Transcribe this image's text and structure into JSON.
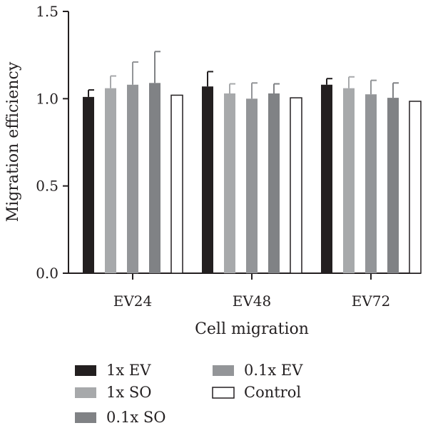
{
  "chart_data": {
    "type": "bar",
    "title": "",
    "xlabel": "Cell migration",
    "ylabel": "Migration efficiency",
    "ylim": [
      0,
      1.5
    ],
    "yticks": [
      "0.0",
      "0.5",
      "1.0",
      "1.5"
    ],
    "categories": [
      "EV24",
      "EV48",
      "EV72"
    ],
    "grid": false,
    "legend_position": "bottom",
    "series": [
      {
        "name": "1x EV",
        "color": "#231f20",
        "values": [
          1.01,
          1.07,
          1.08
        ],
        "errors": [
          0.04,
          0.085,
          0.035
        ]
      },
      {
        "name": "1x SO",
        "color": "#a7a9ab",
        "values": [
          1.06,
          1.03,
          1.06
        ],
        "errors": [
          0.07,
          0.055,
          0.065
        ]
      },
      {
        "name": "0.1x EV",
        "color": "#939598",
        "values": [
          1.08,
          1.0,
          1.025
        ],
        "errors": [
          0.13,
          0.09,
          0.08
        ]
      },
      {
        "name": "0.1x SO",
        "color": "#808285",
        "values": [
          1.09,
          1.03,
          1.005
        ],
        "errors": [
          0.18,
          0.055,
          0.085
        ]
      },
      {
        "name": "Control",
        "color": "#ffffff",
        "values": [
          1.02,
          1.005,
          0.985
        ],
        "errors": [
          0,
          0,
          0
        ]
      }
    ]
  }
}
